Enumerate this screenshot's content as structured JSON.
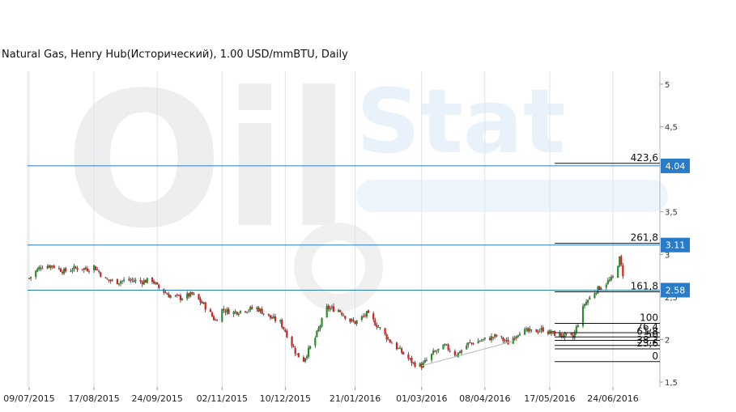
{
  "chart_data": {
    "type": "candlestick",
    "title": "Natural Gas, Henry Hub(Исторический), 1.00 USD/mmBTU, Daily",
    "x_ticks": [
      "09/07/2015",
      "17/08/2015",
      "24/09/2015",
      "02/11/2015",
      "10/12/2015",
      "21/01/2016",
      "01/03/2016",
      "08/04/2016",
      "17/05/2016",
      "24/06/2016"
    ],
    "y_ticks": [
      "5",
      "4,5",
      "3,5",
      "3",
      "2,5",
      "2",
      "1,5"
    ],
    "ylim": [
      1.5,
      5
    ],
    "y_axis_side": "right",
    "grid": "vertical",
    "close_path": [
      [
        "09/07/2015",
        2.72
      ],
      [
        "16/07/2015",
        2.86
      ],
      [
        "23/07/2015",
        2.87
      ],
      [
        "30/07/2015",
        2.8
      ],
      [
        "06/08/2015",
        2.84
      ],
      [
        "13/08/2015",
        2.83
      ],
      [
        "17/08/2015",
        2.86
      ],
      [
        "24/08/2015",
        2.7
      ],
      [
        "31/08/2015",
        2.68
      ],
      [
        "07/09/2015",
        2.7
      ],
      [
        "14/09/2015",
        2.68
      ],
      [
        "21/09/2015",
        2.7
      ],
      [
        "24/09/2015",
        2.62
      ],
      [
        "01/10/2015",
        2.52
      ],
      [
        "08/10/2015",
        2.49
      ],
      [
        "15/10/2015",
        2.53
      ],
      [
        "22/10/2015",
        2.41
      ],
      [
        "29/10/2015",
        2.22
      ],
      [
        "02/11/2015",
        2.35
      ],
      [
        "09/11/2015",
        2.32
      ],
      [
        "16/11/2015",
        2.35
      ],
      [
        "23/11/2015",
        2.37
      ],
      [
        "30/11/2015",
        2.27
      ],
      [
        "07/12/2015",
        2.2
      ],
      [
        "10/12/2015",
        2.1
      ],
      [
        "17/12/2015",
        1.82
      ],
      [
        "21/12/2015",
        1.76
      ],
      [
        "28/12/2015",
        2.02
      ],
      [
        "04/01/2016",
        2.37
      ],
      [
        "11/01/2016",
        2.35
      ],
      [
        "18/01/2016",
        2.22
      ],
      [
        "21/01/2016",
        2.2
      ],
      [
        "28/01/2016",
        2.3
      ],
      [
        "04/02/2016",
        2.15
      ],
      [
        "11/02/2016",
        1.98
      ],
      [
        "18/02/2016",
        1.85
      ],
      [
        "25/02/2016",
        1.72
      ],
      [
        "01/03/2016",
        1.69
      ],
      [
        "08/03/2016",
        1.84
      ],
      [
        "15/03/2016",
        1.92
      ],
      [
        "22/03/2016",
        1.82
      ],
      [
        "29/03/2016",
        1.95
      ],
      [
        "08/04/2016",
        2.0
      ],
      [
        "15/04/2016",
        2.04
      ],
      [
        "22/04/2016",
        1.96
      ],
      [
        "29/04/2016",
        2.1
      ],
      [
        "06/05/2016",
        2.09
      ],
      [
        "13/05/2016",
        2.12
      ],
      [
        "17/05/2016",
        2.08
      ],
      [
        "24/05/2016",
        2.05
      ],
      [
        "31/05/2016",
        2.02
      ],
      [
        "07/06/2016",
        2.42
      ],
      [
        "14/06/2016",
        2.58
      ],
      [
        "21/06/2016",
        2.68
      ],
      [
        "24/06/2016",
        2.72
      ],
      [
        "28/06/2016",
        2.95
      ],
      [
        "30/06/2016",
        2.77
      ]
    ],
    "horizontal_levels": [
      {
        "label": "4.04",
        "value": 4.04,
        "color": "#2a7bc8"
      },
      {
        "label": "3.11",
        "value": 3.11,
        "color": "#2a7bc8"
      },
      {
        "label": "2.58",
        "value": 2.58,
        "color": "#2a7bc8"
      }
    ],
    "fibonacci": [
      {
        "label": "423,6",
        "value": 4.07
      },
      {
        "label": "261,8",
        "value": 3.13
      },
      {
        "label": "161,8",
        "value": 2.56
      },
      {
        "label": "100",
        "value": 2.19
      },
      {
        "label": "76,4",
        "value": 2.08
      },
      {
        "label": "61,8",
        "value": 2.03
      },
      {
        "label": "50",
        "value": 1.99
      },
      {
        "label": "38,2",
        "value": 1.93
      },
      {
        "label": "23,6",
        "value": 1.89
      },
      {
        "label": "0",
        "value": 1.74
      }
    ],
    "fibonacci_start": "20/05/2016",
    "trendline": [
      [
        "01/03/2016",
        1.69
      ],
      [
        "25/04/2016",
        1.98
      ]
    ],
    "colors": {
      "up": "#2e8b2e",
      "down": "#d42020",
      "level": "#2a7bc8",
      "grid": "#dde3ea"
    }
  },
  "watermark": {
    "brand": "Oil",
    "brand2": "Stat"
  }
}
